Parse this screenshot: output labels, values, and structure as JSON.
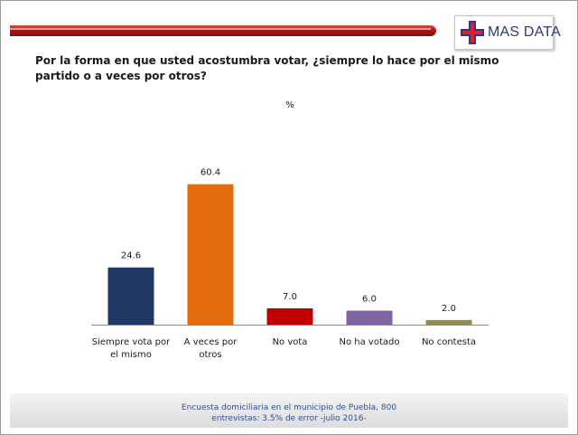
{
  "logo": {
    "text": "MAS DATA"
  },
  "colors": {
    "header_bar": "#b3121a",
    "logo_cross_blue": "#2a3a8a",
    "logo_cross_red": "#e41e26",
    "logo_text": "#2a3a7a",
    "footer_text": "#2f4f8f"
  },
  "chart_data": {
    "type": "bar",
    "title": "Por la forma en que usted acostumbra votar, ¿siempre lo hace por el mismo partido o a veces por otros?",
    "subtitle": "%",
    "categories": [
      [
        "Siempre vota por",
        "el mismo"
      ],
      [
        "A veces por",
        "otros"
      ],
      [
        "No vota"
      ],
      [
        "No ha votado"
      ],
      [
        "No contesta"
      ]
    ],
    "values": [
      24.6,
      60.4,
      7.0,
      6.0,
      2.0
    ],
    "value_labels": [
      "24.6",
      "60.4",
      "7.0",
      "6.0",
      "2.0"
    ],
    "bar_colors": [
      "#1f3864",
      "#e46c0a",
      "#c00000",
      "#8064a2",
      "#938953"
    ],
    "ylim": [
      0,
      70
    ],
    "grid": false,
    "legend": "none"
  },
  "footer": {
    "lines": [
      "Encuesta domiciliaria en el municipio de Puebla, 800",
      "entrevistas: 3.5% de error -julio 2016-"
    ]
  }
}
